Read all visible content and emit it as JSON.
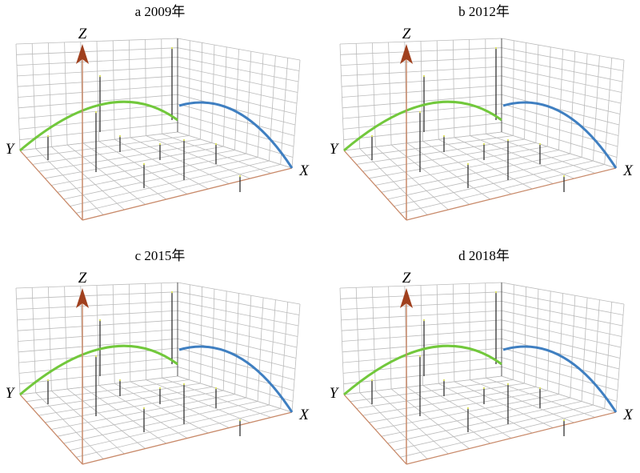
{
  "panels": [
    {
      "title": "a 2009年",
      "z_label": "Z",
      "x_label": "X",
      "y_label": "Y"
    },
    {
      "title": "b 2012年",
      "z_label": "Z",
      "x_label": "X",
      "y_label": "Y"
    },
    {
      "title": "c 2015年",
      "z_label": "Z",
      "x_label": "X",
      "y_label": "Y"
    },
    {
      "title": "d 2018年",
      "z_label": "Z",
      "x_label": "X",
      "y_label": "Y"
    }
  ]
}
